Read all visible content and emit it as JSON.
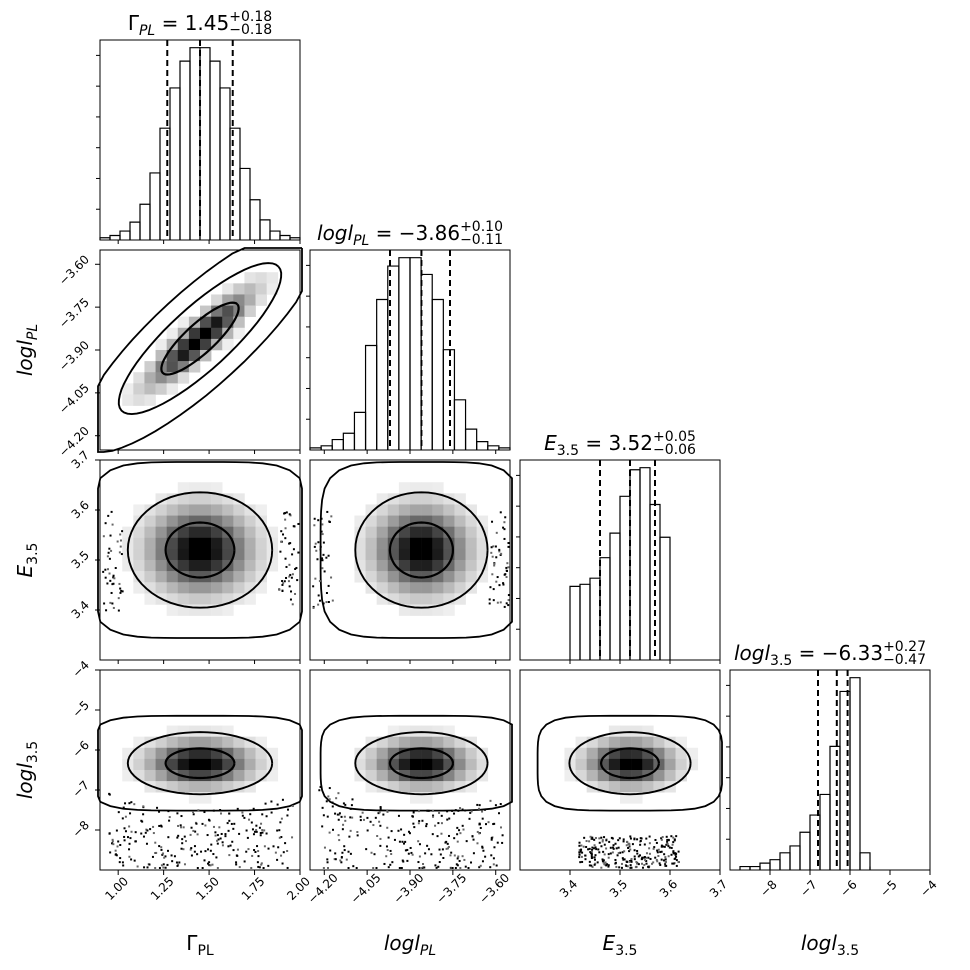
{
  "chart_data": {
    "type": "corner",
    "parameters": [
      {
        "key": "gamma_pl",
        "label": {
          "base": "Γ",
          "sub": "PL",
          "italic": false
        },
        "median": 1.45,
        "q_lo": 1.27,
        "q_hi": 1.63,
        "title": {
          "lhs": "Γ",
          "lhs_sub": "PL",
          "value": "1.45",
          "plus": "+0.18",
          "minus": "−0.18"
        },
        "range": [
          0.9,
          2.0
        ],
        "ticks": [
          1.0,
          1.25,
          1.5,
          1.75,
          2.0
        ],
        "tick_labels": [
          "1.00",
          "1.25",
          "1.50",
          "1.75",
          "2.00"
        ],
        "hist": [
          1,
          2,
          4,
          8,
          16,
          30,
          50,
          68,
          80,
          86,
          86,
          80,
          68,
          50,
          32,
          18,
          9,
          4,
          2,
          1
        ]
      },
      {
        "key": "logl_pl",
        "label": {
          "base": "logl",
          "sub": "PL",
          "italic": true
        },
        "median": -3.86,
        "q_lo": -3.97,
        "q_hi": -3.76,
        "title": {
          "lhs": "logl",
          "lhs_sub": "PL",
          "value": "−3.86",
          "plus": "+0.10",
          "minus": "−0.11"
        },
        "range": [
          -4.25,
          -3.55
        ],
        "ticks": [
          -4.2,
          -4.05,
          -3.9,
          -3.75,
          -3.6
        ],
        "tick_labels": [
          "−4.20",
          "−4.05",
          "−3.90",
          "−3.75",
          "−3.60"
        ],
        "hist": [
          1,
          2,
          5,
          8,
          18,
          50,
          72,
          88,
          92,
          92,
          84,
          72,
          48,
          24,
          10,
          4,
          2,
          1
        ]
      },
      {
        "key": "e35",
        "label": {
          "base": "E",
          "sub": "3.5",
          "italic": true
        },
        "median": 3.52,
        "q_lo": 3.46,
        "q_hi": 3.57,
        "title": {
          "lhs": "E",
          "lhs_sub": "3.5",
          "value": "3.52",
          "plus": "+0.05",
          "minus": "−0.06"
        },
        "range": [
          3.3,
          3.7
        ],
        "ticks": [
          3.4,
          3.5,
          3.6,
          3.7
        ],
        "tick_labels": [
          "3.4",
          "3.5",
          "3.6",
          "3.7"
        ],
        "hist_edges": [
          3.4,
          3.42,
          3.44,
          3.46,
          3.48,
          3.5,
          3.52,
          3.54,
          3.56,
          3.58,
          3.6
        ],
        "hist": [
          36,
          37,
          40,
          50,
          62,
          80,
          93,
          94,
          76,
          60
        ]
      },
      {
        "key": "logl_35",
        "label": {
          "base": "logl",
          "sub": "3.5",
          "italic": true
        },
        "median": -6.33,
        "q_lo": -6.8,
        "q_hi": -6.06,
        "title": {
          "lhs": "logl",
          "lhs_sub": "3.5",
          "value": "−6.33",
          "plus": "+0.27",
          "minus": "−0.47"
        },
        "range": [
          -9.0,
          -4.0
        ],
        "ticks": [
          -8,
          -7,
          -6,
          -5,
          -4
        ],
        "tick_labels": [
          "−8",
          "−7",
          "−6",
          "−5",
          "−4"
        ],
        "hist_edges": [
          -8.75,
          -8.5,
          -8.25,
          -8.0,
          -7.75,
          -7.5,
          -7.25,
          -7.0,
          -6.75,
          -6.5,
          -6.25,
          -6.0,
          -5.75,
          -5.5
        ],
        "hist": [
          1,
          1,
          2,
          3,
          5,
          7,
          11,
          16,
          22,
          36,
          52,
          56,
          5,
          1
        ]
      }
    ],
    "left_tick_labels": {
      "logl_pl": [
        "−3.60",
        "−3.75",
        "−3.90",
        "−4.05",
        "−4.20"
      ],
      "e35": [
        "3.7",
        "3.6",
        "3.5",
        "3.4"
      ],
      "logl_35": [
        "−4",
        "−5",
        "−6",
        "−7",
        "−8"
      ]
    }
  }
}
